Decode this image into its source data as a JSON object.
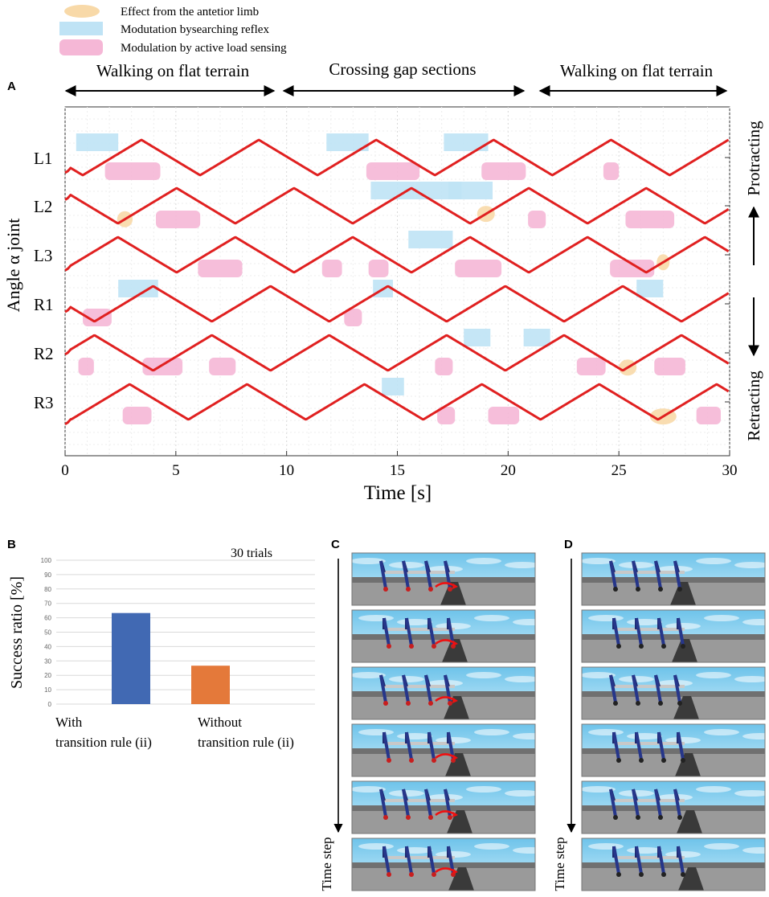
{
  "legend": [
    {
      "label": "Effect from the antetior limb",
      "color": "#f8d9a8"
    },
    {
      "label": "Modutation bysearching reflex",
      "color": "#bfe3f5"
    },
    {
      "label": "Modulation by active load sensing",
      "color": "#f5b7d6"
    }
  ],
  "panel_letters": {
    "a": "A",
    "b": "B",
    "c": "C",
    "d": "D"
  },
  "phases": [
    {
      "label": "Walking on flat terrain",
      "start": 0,
      "end": 9.3
    },
    {
      "label": "Crossing gap sections",
      "start": 9.3,
      "end": 21.3
    },
    {
      "label": "Walking on flat terrain",
      "start": 21.3,
      "end": 30
    }
  ],
  "right_labels": {
    "top": "Protracting",
    "bottom": "Retracting"
  },
  "colors": {
    "trace": "#e02020",
    "search": "#bfe3f5",
    "load": "#f5b7d6",
    "anterior": "#f8d9a8",
    "bar1": "#4169b3",
    "bar2": "#e4793a"
  },
  "chart_data": [
    {
      "type": "line",
      "title": "",
      "xlabel": "Time [s]",
      "ylabel": "Angle α joint",
      "xlim": [
        0,
        30
      ],
      "xticks": [
        0,
        5,
        10,
        15,
        20,
        25,
        30
      ],
      "legs": [
        "L1",
        "L2",
        "L3",
        "R1",
        "R2",
        "R3"
      ],
      "period_s": 5.3,
      "series": [
        {
          "name": "L1",
          "phase": 0.35,
          "search": [
            [
              0.5,
              2.4
            ],
            [
              11.8,
              13.7
            ],
            [
              17.1,
              19.1
            ]
          ],
          "load": [
            [
              1.8,
              4.3
            ],
            [
              13.6,
              16.0
            ],
            [
              18.8,
              20.8
            ],
            [
              24.3,
              25.0
            ]
          ],
          "anterior": []
        },
        {
          "name": "L2",
          "phase": 0.05,
          "search": [
            [
              13.8,
              15.8
            ],
            [
              15.8,
              17.9
            ],
            [
              17.3,
              19.3
            ]
          ],
          "load": [
            [
              4.1,
              6.1
            ],
            [
              20.9,
              21.7
            ],
            [
              25.3,
              27.5
            ]
          ],
          "anterior": [
            [
              2.7,
              0.7
            ],
            [
              19.0,
              0.8
            ]
          ]
        },
        {
          "name": "L3",
          "phase": 0.55,
          "search": [
            [
              15.5,
              17.5
            ]
          ],
          "load": [
            [
              6.0,
              8.0
            ],
            [
              11.6,
              12.5
            ],
            [
              13.7,
              14.6
            ],
            [
              17.6,
              19.7
            ],
            [
              24.6,
              26.6
            ]
          ],
          "anterior": [
            [
              27.0,
              0.4
            ]
          ]
        },
        {
          "name": "R1",
          "phase": 0.25,
          "search": [
            [
              2.4,
              4.2
            ],
            [
              13.9,
              14.8
            ],
            [
              25.8,
              27.0
            ]
          ],
          "load": [
            [
              0.8,
              2.1
            ],
            [
              12.6,
              13.4
            ]
          ],
          "anterior": []
        },
        {
          "name": "R2",
          "phase": 0.75,
          "search": [
            [
              18.0,
              19.2
            ],
            [
              20.7,
              21.9
            ]
          ],
          "load": [
            [
              0.6,
              1.3
            ],
            [
              3.5,
              5.3
            ],
            [
              6.5,
              7.7
            ],
            [
              16.7,
              17.5
            ],
            [
              23.1,
              24.4
            ],
            [
              26.6,
              28.0
            ]
          ],
          "anterior": [
            [
              25.4,
              0.8
            ]
          ]
        },
        {
          "name": "R3",
          "phase": 0.45,
          "search": [
            [
              14.3,
              15.3
            ]
          ],
          "load": [
            [
              2.6,
              3.9
            ],
            [
              16.8,
              17.6
            ],
            [
              19.1,
              20.5
            ],
            [
              28.5,
              29.6
            ]
          ],
          "anterior": [
            [
              27.0,
              1.2
            ]
          ]
        }
      ]
    },
    {
      "type": "bar",
      "title": "",
      "annotation": "30 trials",
      "ylabel": "Success ratio [%]",
      "ylim": [
        0,
        100
      ],
      "yticks": [
        0,
        10,
        20,
        30,
        40,
        50,
        60,
        70,
        80,
        90,
        100
      ],
      "categories": [
        "With transition rule (ii)",
        "Without transition rule (ii)"
      ],
      "category_lines": [
        [
          "With",
          "transition rule (ii)"
        ],
        [
          "Without",
          "transition rule (ii)"
        ]
      ],
      "values": [
        63.3,
        26.7
      ]
    }
  ],
  "time_step_label": "Time step",
  "simulation_frames": {
    "c": 6,
    "d": 6
  }
}
